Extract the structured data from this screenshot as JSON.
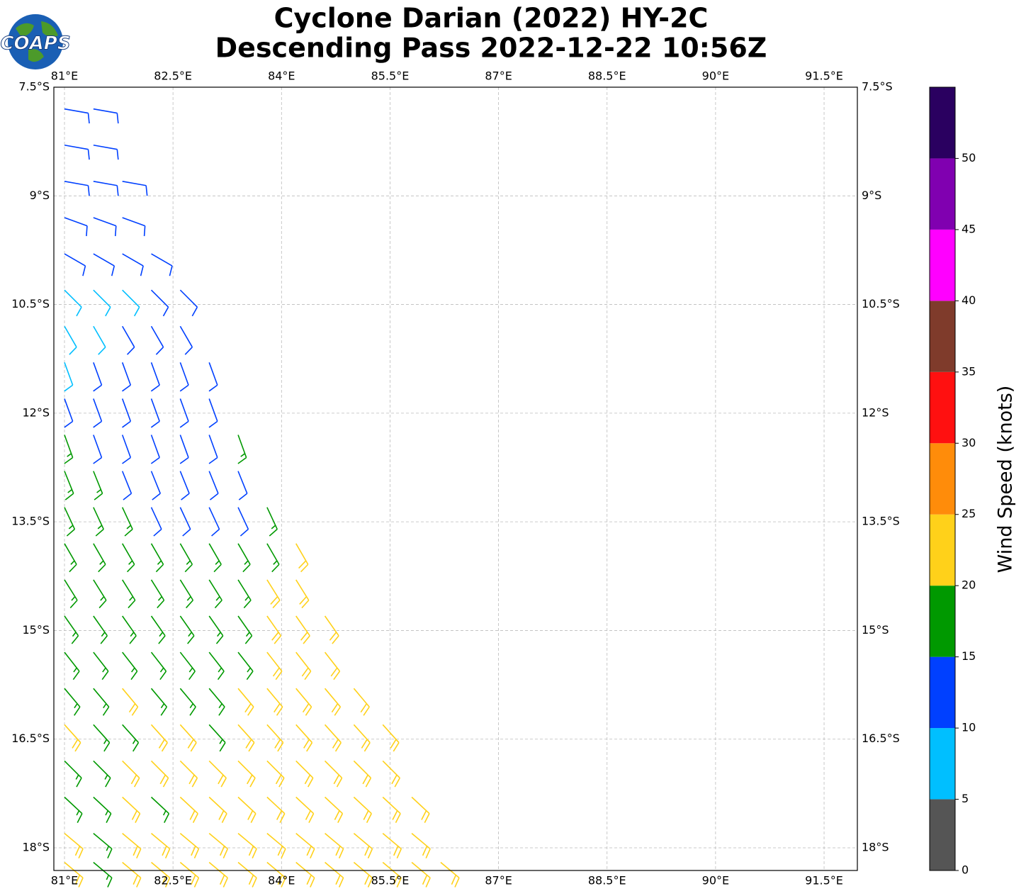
{
  "chart_data": {
    "type": "wind-barb-map",
    "title": [
      "Cyclone Darian (2022) HY-2C",
      "Descending Pass 2022-12-22 10:56Z"
    ],
    "logo_text": "COAPS",
    "xlim": [
      80.853,
      91.96
    ],
    "ylim": [
      -18.313,
      -7.5
    ],
    "xticks": [
      {
        "value": 81,
        "label": "81°E"
      },
      {
        "value": 82.5,
        "label": "82.5°E"
      },
      {
        "value": 84,
        "label": "84°E"
      },
      {
        "value": 85.5,
        "label": "85.5°E"
      },
      {
        "value": 87,
        "label": "87°E"
      },
      {
        "value": 88.5,
        "label": "88.5°E"
      },
      {
        "value": 90,
        "label": "90°E"
      },
      {
        "value": 91.5,
        "label": "91.5°E"
      }
    ],
    "yticks": [
      {
        "value": -7.5,
        "label": "7.5°S"
      },
      {
        "value": -9,
        "label": "9°S"
      },
      {
        "value": -10.5,
        "label": "10.5°S"
      },
      {
        "value": -12,
        "label": "12°S"
      },
      {
        "value": -13.5,
        "label": "13.5°S"
      },
      {
        "value": -15,
        "label": "15°S"
      },
      {
        "value": -16.5,
        "label": "16.5°S"
      },
      {
        "value": -18,
        "label": "18°S"
      }
    ],
    "grid": true,
    "barbs": [
      {
        "lat": -7.8,
        "lon": [
          81.0,
          81.4
        ],
        "speed": [
          12,
          12
        ],
        "dir": 100
      },
      {
        "lat": -8.3,
        "lon": [
          81.0,
          81.4
        ],
        "speed": [
          12,
          12
        ],
        "dir": 100
      },
      {
        "lat": -8.8,
        "lon": [
          81.0,
          81.4,
          81.8
        ],
        "speed": [
          12,
          12,
          12
        ],
        "dir": 100
      },
      {
        "lat": -9.3,
        "lon": [
          81.0,
          81.4,
          81.8
        ],
        "speed": [
          12,
          12,
          12
        ],
        "dir": 110
      },
      {
        "lat": -9.8,
        "lon": [
          81.0,
          81.4,
          81.8,
          82.2
        ],
        "speed": [
          12,
          12,
          12,
          12
        ],
        "dir": 120
      },
      {
        "lat": -10.3,
        "lon": [
          81.0,
          81.4,
          81.8,
          82.2,
          82.6
        ],
        "speed": [
          8,
          8,
          8,
          12,
          12
        ],
        "dir": 135
      },
      {
        "lat": -10.8,
        "lon": [
          81.0,
          81.4,
          81.8,
          82.2,
          82.6
        ],
        "speed": [
          8,
          8,
          12,
          12,
          12
        ],
        "dir": 150
      },
      {
        "lat": -11.3,
        "lon": [
          81.0,
          81.4,
          81.8,
          82.2,
          82.6,
          83.0
        ],
        "speed": [
          8,
          12,
          12,
          12,
          12,
          12
        ],
        "dir": 160
      },
      {
        "lat": -11.8,
        "lon": [
          81.0,
          81.4,
          81.8,
          82.2,
          82.6,
          83.0
        ],
        "speed": [
          12,
          12,
          12,
          12,
          12,
          12
        ],
        "dir": 160
      },
      {
        "lat": -12.3,
        "lon": [
          81.0,
          81.4,
          81.8,
          82.2,
          82.6,
          83.0,
          83.4
        ],
        "speed": [
          17,
          12,
          12,
          12,
          12,
          12,
          17
        ],
        "dir": 160
      },
      {
        "lat": -12.8,
        "lon": [
          81.0,
          81.4,
          81.8,
          82.2,
          82.6,
          83.0,
          83.4
        ],
        "speed": [
          17,
          17,
          12,
          12,
          12,
          12,
          12
        ],
        "dir": 158
      },
      {
        "lat": -13.3,
        "lon": [
          81.0,
          81.4,
          81.8,
          82.2,
          82.6,
          83.0,
          83.4,
          83.8
        ],
        "speed": [
          17,
          17,
          17,
          12,
          12,
          12,
          12,
          17
        ],
        "dir": 155
      },
      {
        "lat": -13.8,
        "lon": [
          81.0,
          81.4,
          81.8,
          82.2,
          82.6,
          83.0,
          83.4,
          83.8,
          84.2
        ],
        "speed": [
          17,
          17,
          17,
          17,
          17,
          17,
          17,
          17,
          22
        ],
        "dir": 150
      },
      {
        "lat": -14.3,
        "lon": [
          81.0,
          81.4,
          81.8,
          82.2,
          82.6,
          83.0,
          83.4,
          83.8,
          84.2
        ],
        "speed": [
          17,
          17,
          17,
          17,
          17,
          17,
          17,
          22,
          22
        ],
        "dir": 148
      },
      {
        "lat": -14.8,
        "lon": [
          81.0,
          81.4,
          81.8,
          82.2,
          82.6,
          83.0,
          83.4,
          83.8,
          84.2,
          84.6
        ],
        "speed": [
          17,
          17,
          17,
          17,
          17,
          17,
          17,
          22,
          22,
          22
        ],
        "dir": 145
      },
      {
        "lat": -15.3,
        "lon": [
          81.0,
          81.4,
          81.8,
          82.2,
          82.6,
          83.0,
          83.4,
          83.8,
          84.2,
          84.6
        ],
        "speed": [
          17,
          17,
          17,
          17,
          17,
          17,
          17,
          22,
          22,
          22
        ],
        "dir": 142
      },
      {
        "lat": -15.8,
        "lon": [
          81.0,
          81.4,
          81.8,
          82.2,
          82.6,
          83.0,
          83.4,
          83.8,
          84.2,
          84.6,
          85.0
        ],
        "speed": [
          17,
          17,
          22,
          17,
          17,
          17,
          22,
          22,
          22,
          22,
          22
        ],
        "dir": 140
      },
      {
        "lat": -16.3,
        "lon": [
          81.0,
          81.4,
          81.8,
          82.2,
          82.6,
          83.0,
          83.4,
          83.8,
          84.2,
          84.6,
          85.0,
          85.4
        ],
        "speed": [
          22,
          17,
          17,
          22,
          22,
          17,
          22,
          22,
          22,
          22,
          22,
          22
        ],
        "dir": 138
      },
      {
        "lat": -16.8,
        "lon": [
          81.0,
          81.4,
          81.8,
          82.2,
          82.6,
          83.0,
          83.4,
          83.8,
          84.2,
          84.6,
          85.0,
          85.4
        ],
        "speed": [
          17,
          17,
          22,
          22,
          22,
          22,
          22,
          22,
          22,
          22,
          22,
          22
        ],
        "dir": 135
      },
      {
        "lat": -17.3,
        "lon": [
          81.0,
          81.4,
          81.8,
          82.2,
          82.6,
          83.0,
          83.4,
          83.8,
          84.2,
          84.6,
          85.0,
          85.4,
          85.8
        ],
        "speed": [
          17,
          17,
          22,
          17,
          22,
          22,
          22,
          22,
          22,
          22,
          22,
          22,
          22
        ],
        "dir": 133
      },
      {
        "lat": -17.8,
        "lon": [
          81.0,
          81.4,
          81.8,
          82.2,
          82.6,
          83.0,
          83.4,
          83.8,
          84.2,
          84.6,
          85.0,
          85.4,
          85.8
        ],
        "speed": [
          22,
          17,
          22,
          22,
          22,
          22,
          22,
          22,
          22,
          22,
          22,
          22,
          22
        ],
        "dir": 130
      },
      {
        "lat": -18.2,
        "lon": [
          81.0,
          81.4,
          81.8,
          82.2,
          82.6,
          83.0,
          83.4,
          83.8,
          84.2,
          84.6,
          85.0,
          85.4,
          85.8,
          86.2
        ],
        "speed": [
          22,
          17,
          22,
          22,
          22,
          22,
          22,
          22,
          22,
          22,
          22,
          22,
          22,
          22
        ],
        "dir": 130
      }
    ],
    "colorbar": {
      "label": "Wind Speed (knots)",
      "bounds": [
        0,
        5,
        10,
        15,
        20,
        25,
        30,
        35,
        40,
        45,
        50,
        55
      ],
      "colors": [
        "#555555",
        "#00bfff",
        "#0040ff",
        "#009900",
        "#ffd11a",
        "#ff8c0a",
        "#ff1010",
        "#7f3b2b",
        "#ff00ff",
        "#8000b0",
        "#2a0060"
      ],
      "ticks": [
        0,
        5,
        10,
        15,
        20,
        25,
        30,
        35,
        40,
        45,
        50
      ]
    }
  }
}
